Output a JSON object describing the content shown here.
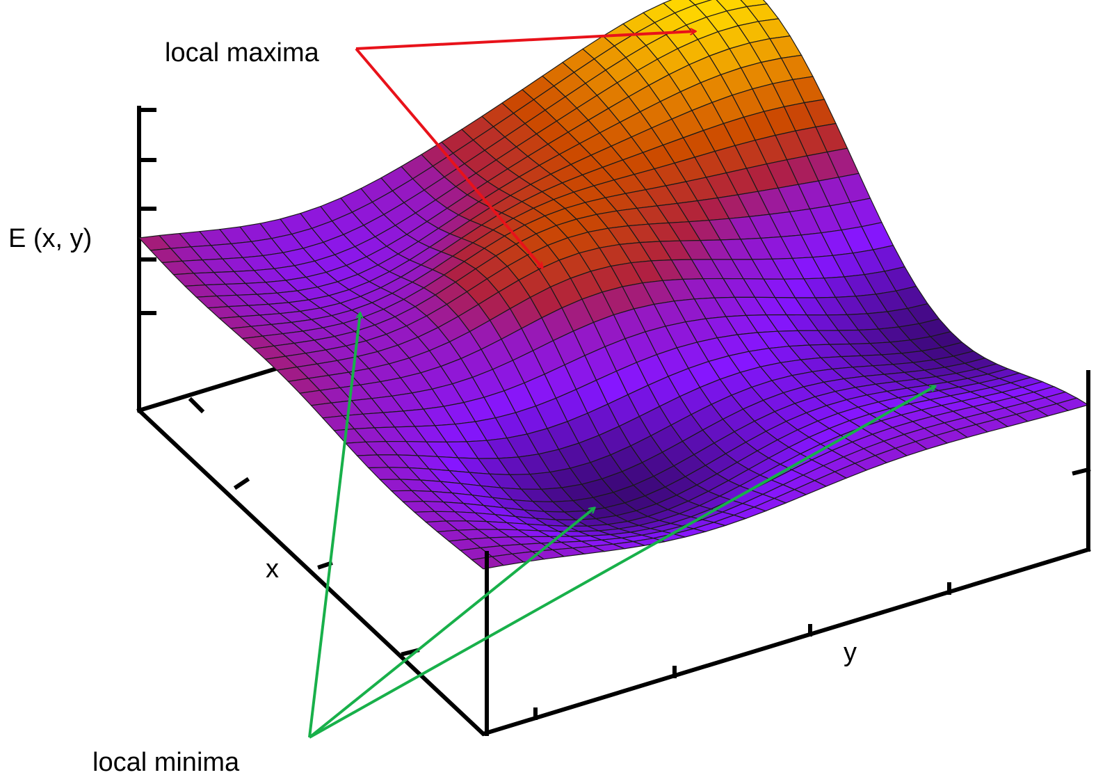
{
  "labels": {
    "maxima": "local maxima",
    "minima": "local minima",
    "z_axis": "E (x, y)",
    "x_axis": "x",
    "y_axis": "y"
  }
}
